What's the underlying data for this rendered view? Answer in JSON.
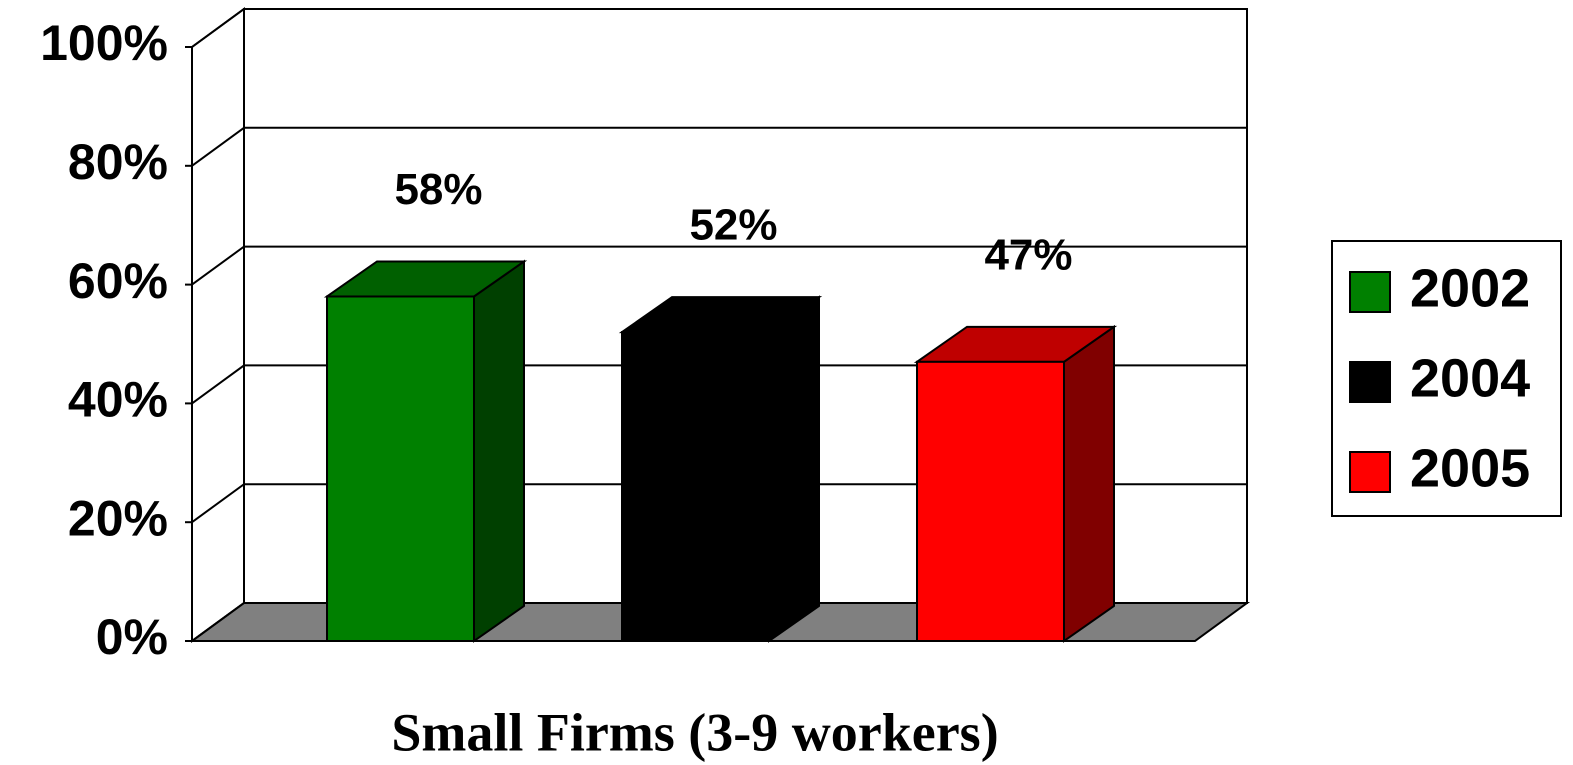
{
  "chart_data": {
    "type": "bar3d",
    "categories": [
      "Small Firms (3-9 workers)"
    ],
    "series": [
      {
        "name": "2002",
        "color": "#008000",
        "values": [
          58
        ],
        "value_labels": [
          "58%"
        ]
      },
      {
        "name": "2004",
        "color": "#000000",
        "values": [
          52
        ],
        "value_labels": [
          "52%"
        ]
      },
      {
        "name": "2005",
        "color": "#ff0000",
        "values": [
          47
        ],
        "value_labels": [
          "47%"
        ]
      }
    ],
    "ylim": [
      0,
      100
    ],
    "yticks": [
      {
        "value": 0,
        "label": "0%"
      },
      {
        "value": 20,
        "label": "20%"
      },
      {
        "value": 40,
        "label": "40%"
      },
      {
        "value": 60,
        "label": "60%"
      },
      {
        "value": 80,
        "label": "80%"
      },
      {
        "value": 100,
        "label": "100%"
      }
    ],
    "grid": true,
    "legend": "right",
    "floor_color": "#808080"
  }
}
